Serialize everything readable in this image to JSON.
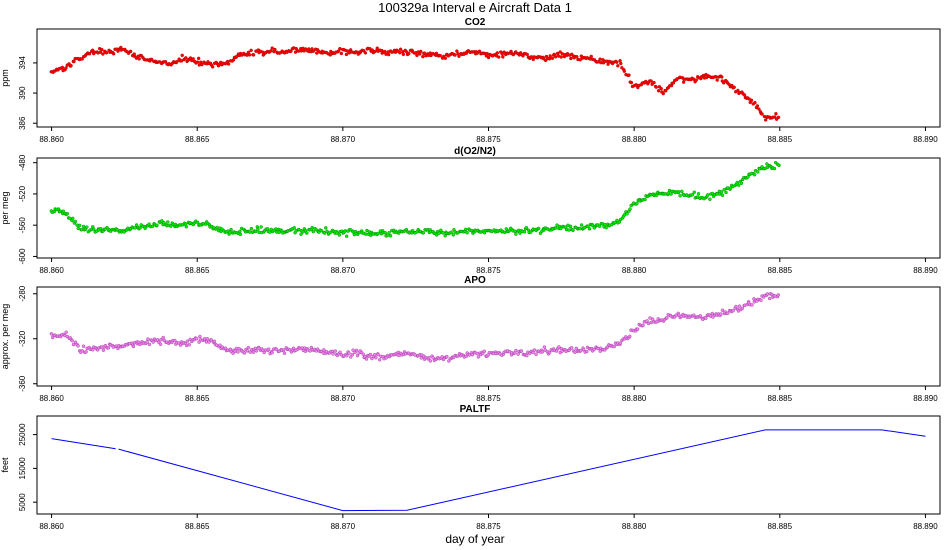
{
  "page": {
    "title": "100329a   Interval e Aircraft Data 1",
    "xlabel": "day of year"
  },
  "chart_data": [
    {
      "type": "scatter",
      "title": "CO2",
      "ylabel": "ppm",
      "xlim": [
        88.8595,
        88.8905
      ],
      "ylim": [
        385.5,
        398.5
      ],
      "xticks": [
        "88.860",
        "88.865",
        "88.870",
        "88.875",
        "88.880",
        "88.885",
        "88.890"
      ],
      "xtick_values": [
        88.86,
        88.865,
        88.87,
        88.875,
        88.88,
        88.885,
        88.89
      ],
      "yticks": [
        "386",
        "390",
        "394"
      ],
      "ytick_values": [
        386,
        390,
        394
      ],
      "color": "#ff0000",
      "outline": "#aa0000",
      "x": [
        88.86,
        88.8605,
        88.861,
        88.8615,
        88.862,
        88.8625,
        88.863,
        88.8635,
        88.864,
        88.8645,
        88.865,
        88.8655,
        88.866,
        88.8665,
        88.867,
        88.8675,
        88.868,
        88.8685,
        88.869,
        88.8695,
        88.87,
        88.8705,
        88.871,
        88.8715,
        88.872,
        88.8725,
        88.873,
        88.8735,
        88.874,
        88.8745,
        88.875,
        88.8755,
        88.876,
        88.8765,
        88.877,
        88.8775,
        88.878,
        88.8785,
        88.879,
        88.8795,
        88.88,
        88.8805,
        88.881,
        88.8815,
        88.882,
        88.8825,
        88.883,
        88.8835,
        88.884,
        88.8845
      ],
      "y": [
        392.8,
        393.5,
        394.8,
        395.6,
        395.5,
        395.7,
        394.8,
        394.2,
        393.8,
        394.6,
        394.2,
        393.8,
        394.0,
        395.0,
        395.3,
        395.6,
        395.4,
        395.8,
        395.6,
        395.4,
        395.5,
        395.3,
        395.7,
        395.4,
        395.4,
        395.3,
        395.2,
        395.0,
        395.1,
        395.6,
        395.0,
        395.1,
        395.3,
        394.8,
        394.6,
        395.2,
        394.8,
        394.5,
        394.1,
        394.0,
        390.8,
        391.6,
        390.0,
        391.8,
        391.8,
        392.2,
        392.0,
        390.5,
        389.0,
        386.8
      ]
    },
    {
      "type": "scatter",
      "title": "d(O2/N2)",
      "ylabel": "per meg",
      "xlim": [
        88.8595,
        88.8905
      ],
      "ylim": [
        -602,
        -474
      ],
      "xticks": [
        "88.860",
        "88.865",
        "88.870",
        "88.875",
        "88.880",
        "88.885",
        "88.890"
      ],
      "xtick_values": [
        88.86,
        88.865,
        88.87,
        88.875,
        88.88,
        88.885,
        88.89
      ],
      "yticks": [
        "-600",
        "-560",
        "-520",
        "-480"
      ],
      "ytick_values": [
        -600,
        -560,
        -520,
        -480
      ],
      "color": "#00ee00",
      "outline": "#007700",
      "x": [
        88.86,
        88.8605,
        88.861,
        88.8615,
        88.862,
        88.8625,
        88.863,
        88.8635,
        88.864,
        88.8645,
        88.865,
        88.8655,
        88.866,
        88.8665,
        88.867,
        88.8675,
        88.868,
        88.8685,
        88.869,
        88.8695,
        88.87,
        88.8705,
        88.871,
        88.8715,
        88.872,
        88.8725,
        88.873,
        88.8735,
        88.874,
        88.8745,
        88.875,
        88.8755,
        88.876,
        88.8765,
        88.877,
        88.8775,
        88.878,
        88.8785,
        88.879,
        88.8795,
        88.88,
        88.8805,
        88.881,
        88.8815,
        88.882,
        88.8825,
        88.883,
        88.8835,
        88.884,
        88.8845
      ],
      "y": [
        -540,
        -545,
        -565,
        -566,
        -565,
        -567,
        -562,
        -560,
        -558,
        -560,
        -556,
        -562,
        -568,
        -568,
        -566,
        -566,
        -569,
        -567,
        -566,
        -568,
        -570,
        -569,
        -570,
        -570,
        -568,
        -568,
        -569,
        -570,
        -569,
        -567,
        -568,
        -567,
        -568,
        -567,
        -566,
        -563,
        -563,
        -562,
        -561,
        -555,
        -532,
        -522,
        -520,
        -518,
        -522,
        -525,
        -518,
        -508,
        -496,
        -484
      ]
    },
    {
      "type": "scatter",
      "title": "APO",
      "ylabel": "approx. per meg",
      "xlim": [
        88.8595,
        88.8905
      ],
      "ylim": [
        -362,
        -274
      ],
      "xticks": [
        "88.860",
        "88.865",
        "88.870",
        "88.875",
        "88.880",
        "88.885",
        "88.890"
      ],
      "xtick_values": [
        88.86,
        88.865,
        88.87,
        88.875,
        88.88,
        88.885,
        88.89
      ],
      "yticks": [
        "-360",
        "-320",
        "-280"
      ],
      "ytick_values": [
        -360,
        -320,
        -280
      ],
      "color": "#ee82ee",
      "outline": "#993399",
      "x": [
        88.86,
        88.8605,
        88.861,
        88.8615,
        88.862,
        88.8625,
        88.863,
        88.8635,
        88.864,
        88.8645,
        88.865,
        88.8655,
        88.866,
        88.8665,
        88.867,
        88.8675,
        88.868,
        88.8685,
        88.869,
        88.8695,
        88.87,
        88.8705,
        88.871,
        88.8715,
        88.872,
        88.8725,
        88.873,
        88.8735,
        88.874,
        88.8745,
        88.875,
        88.8755,
        88.876,
        88.8765,
        88.877,
        88.8775,
        88.878,
        88.8785,
        88.879,
        88.8795,
        88.88,
        88.8805,
        88.881,
        88.8815,
        88.882,
        88.8825,
        88.883,
        88.8835,
        88.884,
        88.8845
      ],
      "y": [
        -318,
        -316,
        -330,
        -328,
        -327,
        -326,
        -324,
        -323,
        -322,
        -325,
        -320,
        -322,
        -330,
        -331,
        -329,
        -330,
        -331,
        -329,
        -330,
        -332,
        -334,
        -333,
        -336,
        -336,
        -333,
        -334,
        -338,
        -337,
        -336,
        -333,
        -333,
        -332,
        -332,
        -332,
        -330,
        -330,
        -331,
        -330,
        -329,
        -324,
        -312,
        -305,
        -302,
        -299,
        -300,
        -300,
        -298,
        -294,
        -288,
        -282
      ]
    },
    {
      "type": "line",
      "title": "PALTF",
      "ylabel": "feet",
      "xlim": [
        88.8595,
        88.8905
      ],
      "ylim": [
        1500,
        30500
      ],
      "xticks": [
        "88.860",
        "88.865",
        "88.870",
        "88.875",
        "88.880",
        "88.885",
        "88.890"
      ],
      "xtick_values": [
        88.86,
        88.865,
        88.87,
        88.875,
        88.88,
        88.885,
        88.89
      ],
      "yticks": [
        "5000",
        "15000",
        "25000"
      ],
      "ytick_values": [
        5000,
        15000,
        25000
      ],
      "color": "#0000ff",
      "segments": [
        {
          "x": [
            88.86,
            88.8622
          ],
          "y": [
            23800,
            20800
          ]
        },
        {
          "x": [
            88.8623,
            88.87,
            88.8722,
            88.8845,
            88.8885,
            88.89
          ],
          "y": [
            20700,
            2500,
            2600,
            26400,
            26400,
            24500
          ]
        }
      ]
    }
  ]
}
